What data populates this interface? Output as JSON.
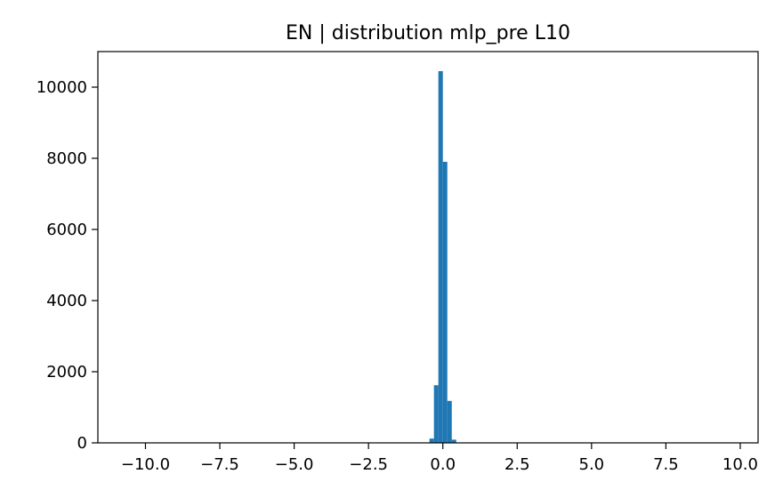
{
  "chart_data": {
    "type": "bar",
    "title": "EN | distribution mlp_pre L10",
    "xlabel": "",
    "ylabel": "",
    "xlim": [
      -11.6,
      10.6
    ],
    "ylim": [
      0,
      11000
    ],
    "x_ticks": [
      -10.0,
      -7.5,
      -5.0,
      -2.5,
      0.0,
      2.5,
      5.0,
      7.5,
      10.0
    ],
    "x_tick_labels": [
      "−10.0",
      "−7.5",
      "−5.0",
      "−2.5",
      "0.0",
      "2.5",
      "5.0",
      "7.5",
      "10.0"
    ],
    "y_ticks": [
      0,
      2000,
      4000,
      6000,
      8000,
      10000
    ],
    "y_tick_labels": [
      "0",
      "2000",
      "4000",
      "6000",
      "8000",
      "10000"
    ],
    "bar_color": "#1f77b4",
    "bins": [
      {
        "x0": -0.45,
        "x1": -0.3,
        "count": 120
      },
      {
        "x0": -0.3,
        "x1": -0.15,
        "count": 1620
      },
      {
        "x0": -0.15,
        "x1": 0.0,
        "count": 10450
      },
      {
        "x0": 0.0,
        "x1": 0.15,
        "count": 7900
      },
      {
        "x0": 0.15,
        "x1": 0.3,
        "count": 1180
      },
      {
        "x0": 0.3,
        "x1": 0.45,
        "count": 90
      }
    ],
    "grid": false
  }
}
